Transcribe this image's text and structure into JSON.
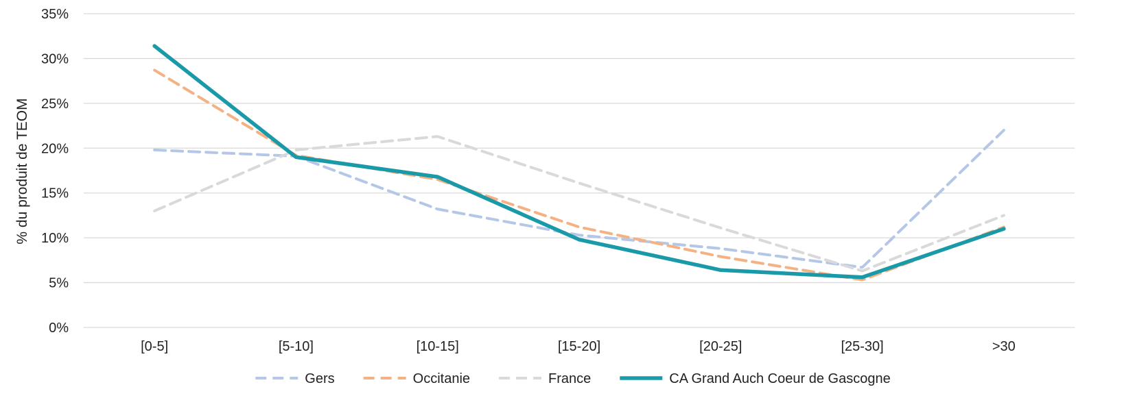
{
  "chart_data": {
    "type": "line",
    "title": "",
    "xlabel": "",
    "ylabel": "% du produit de TEOM",
    "categories": [
      "[0-5]",
      "[5-10]",
      "[10-15]",
      "[15-20]",
      "[20-25]",
      "[25-30]",
      ">30"
    ],
    "ylim": [
      0,
      35
    ],
    "yticks": [
      "0%",
      "5%",
      "10%",
      "15%",
      "20%",
      "25%",
      "30%",
      "35%"
    ],
    "grid": "horizontal",
    "legend_position": "bottom",
    "series": [
      {
        "name": "Gers",
        "values": [
          19.8,
          19.1,
          13.2,
          10.3,
          8.8,
          6.7,
          22.0
        ],
        "color": "#b4c7e7",
        "style": "dashed"
      },
      {
        "name": "Occitanie",
        "values": [
          28.7,
          19.2,
          16.5,
          11.2,
          7.9,
          5.3,
          11.2
        ],
        "color": "#f4b183",
        "style": "dashed"
      },
      {
        "name": "France",
        "values": [
          13.0,
          19.8,
          21.3,
          16.1,
          11.1,
          6.3,
          12.5
        ],
        "color": "#d9d9d9",
        "style": "dashed"
      },
      {
        "name": "CA Grand Auch Coeur de Gascogne",
        "values": [
          31.4,
          19.0,
          16.8,
          9.8,
          6.4,
          5.6,
          11.0
        ],
        "color": "#1a9aa8",
        "style": "solid"
      }
    ]
  }
}
